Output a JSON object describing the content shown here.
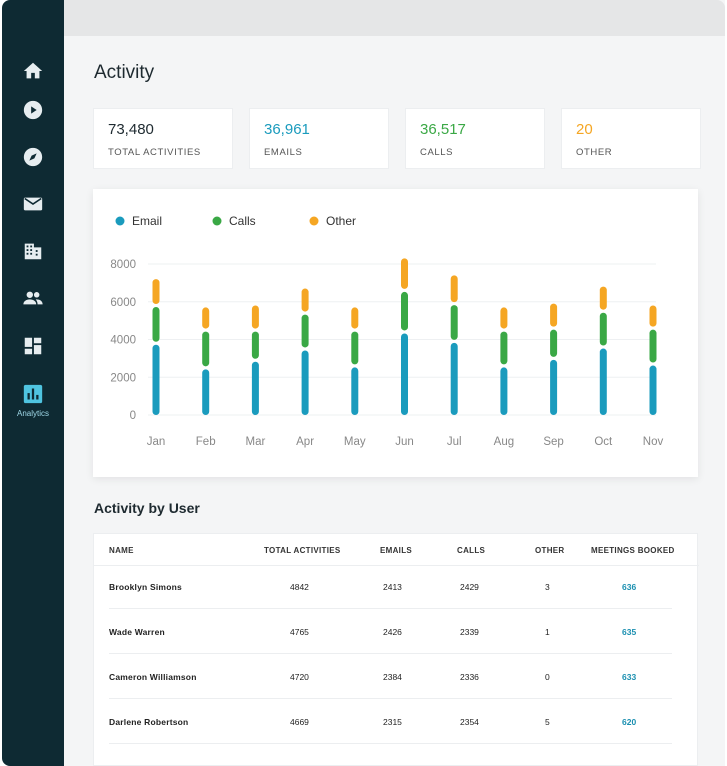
{
  "sidebar": {
    "items": [
      {
        "name": "home-icon"
      },
      {
        "name": "play-icon"
      },
      {
        "name": "compass-icon"
      },
      {
        "name": "mail-icon"
      },
      {
        "name": "building-icon"
      },
      {
        "name": "people-icon"
      },
      {
        "name": "dashboard-icon"
      },
      {
        "name": "analytics-icon",
        "label": "Analytics",
        "active": true
      }
    ]
  },
  "page": {
    "title": "Activity"
  },
  "stats": [
    {
      "value": "73,480",
      "label": "TOTAL ACTIVITIES",
      "color": "#1e2a30"
    },
    {
      "value": "36,961",
      "label": "EMAILS",
      "color": "#1a9bbd"
    },
    {
      "value": "36,517",
      "label": "CALLS",
      "color": "#3aa845"
    },
    {
      "value": "20",
      "label": "OTHER",
      "color": "#f5a623"
    }
  ],
  "chart_data": {
    "type": "bar",
    "stacked": true,
    "categories": [
      "Jan",
      "Feb",
      "Mar",
      "Apr",
      "May",
      "Jun",
      "Jul",
      "Aug",
      "Sep",
      "Oct",
      "Nov"
    ],
    "series": [
      {
        "name": "Email",
        "color": "#1a9bbd",
        "values": [
          3800,
          2500,
          2900,
          3500,
          2600,
          4400,
          3900,
          2600,
          3000,
          3600,
          2700
        ]
      },
      {
        "name": "Calls",
        "color": "#3aa845",
        "values": [
          2000,
          2000,
          1600,
          1900,
          1900,
          2200,
          2000,
          1900,
          1600,
          1900,
          1900
        ]
      },
      {
        "name": "Other",
        "color": "#f5a623",
        "values": [
          1400,
          1200,
          1300,
          1300,
          1200,
          1700,
          1500,
          1200,
          1300,
          1300,
          1200
        ]
      }
    ],
    "yticks": [
      "0",
      "2000",
      "4000",
      "6000",
      "8000"
    ],
    "ylim": [
      0,
      8000
    ],
    "grid": true,
    "legend": "top-left"
  },
  "section": {
    "title": "Activity by User"
  },
  "table": {
    "headers": [
      "NAME",
      "TOTAL ACTIVITIES",
      "EMAILS",
      "CALLS",
      "OTHER",
      "MEETINGS BOOKED"
    ],
    "rows": [
      [
        "Brooklyn Simons",
        "4842",
        "2413",
        "2429",
        "3",
        "636"
      ],
      [
        "Wade Warren",
        "4765",
        "2426",
        "2339",
        "1",
        "635"
      ],
      [
        "Cameron Williamson",
        "4720",
        "2384",
        "2336",
        "0",
        "633"
      ],
      [
        "Darlene Robertson",
        "4669",
        "2315",
        "2354",
        "5",
        "620"
      ]
    ]
  }
}
